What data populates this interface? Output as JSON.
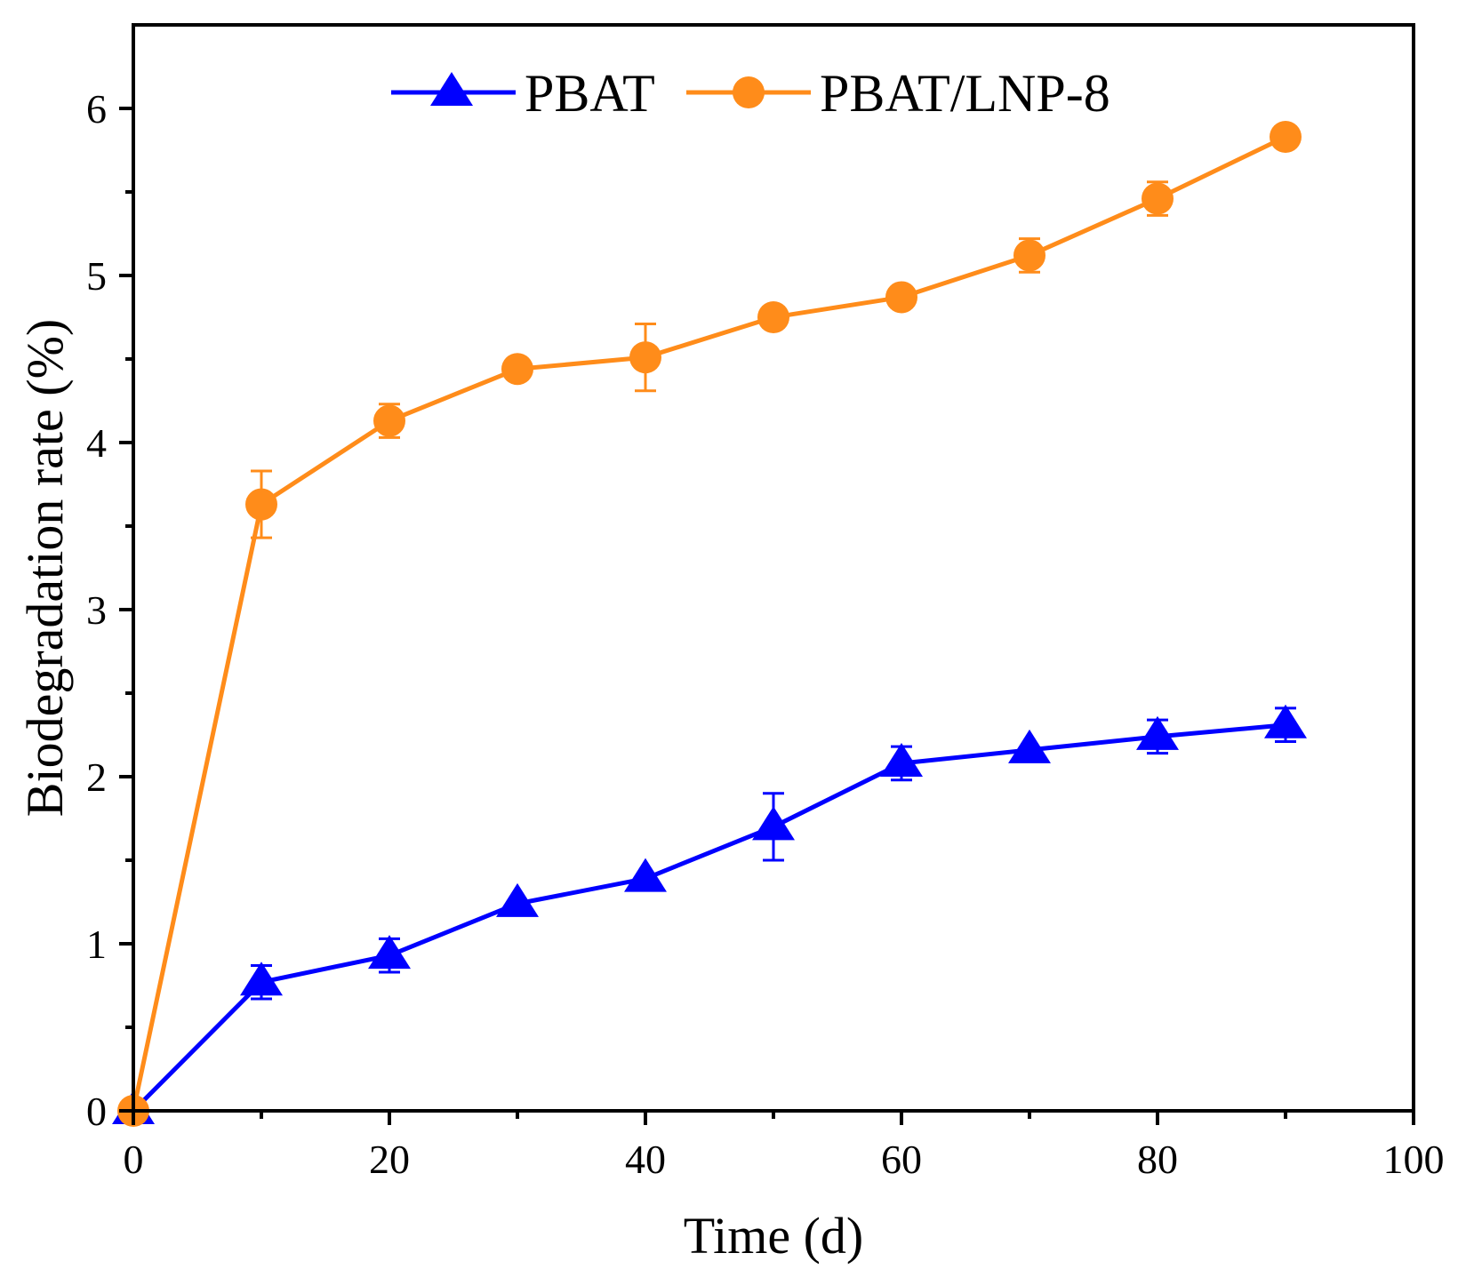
{
  "chart_data": {
    "type": "line",
    "title": "",
    "xlabel": "Time (d)",
    "ylabel": "Biodegradation rate (%)",
    "xlim": [
      0,
      100
    ],
    "ylim": [
      0,
      6.5
    ],
    "x_ticks": [
      0,
      20,
      40,
      60,
      80,
      100
    ],
    "x_minor_ticks": [
      10,
      30,
      50,
      70,
      90
    ],
    "y_ticks": [
      0,
      1,
      2,
      3,
      4,
      5,
      6
    ],
    "y_minor_ticks": [
      0.5,
      1.5,
      2.5,
      3.5,
      4.5,
      5.5
    ],
    "grid": false,
    "legend_position": "top-center",
    "series": [
      {
        "name": "PBAT",
        "color": "#0000ff",
        "marker": "triangle",
        "x": [
          0,
          10,
          20,
          30,
          40,
          50,
          60,
          70,
          80,
          90
        ],
        "values": [
          0,
          0.77,
          0.93,
          1.24,
          1.39,
          1.7,
          2.08,
          2.16,
          2.24,
          2.31
        ],
        "errors": [
          0,
          0.1,
          0.1,
          0.02,
          0.02,
          0.2,
          0.1,
          0.02,
          0.1,
          0.1
        ]
      },
      {
        "name": "PBAT/LNP-8",
        "color": "#ff8c1a",
        "marker": "circle",
        "x": [
          0,
          10,
          20,
          30,
          40,
          50,
          60,
          70,
          80,
          90
        ],
        "values": [
          0,
          3.63,
          4.13,
          4.44,
          4.51,
          4.75,
          4.87,
          5.12,
          5.46,
          5.83
        ],
        "errors": [
          0,
          0.2,
          0.1,
          0.02,
          0.2,
          0.02,
          0.02,
          0.1,
          0.1,
          0.02
        ]
      }
    ]
  }
}
